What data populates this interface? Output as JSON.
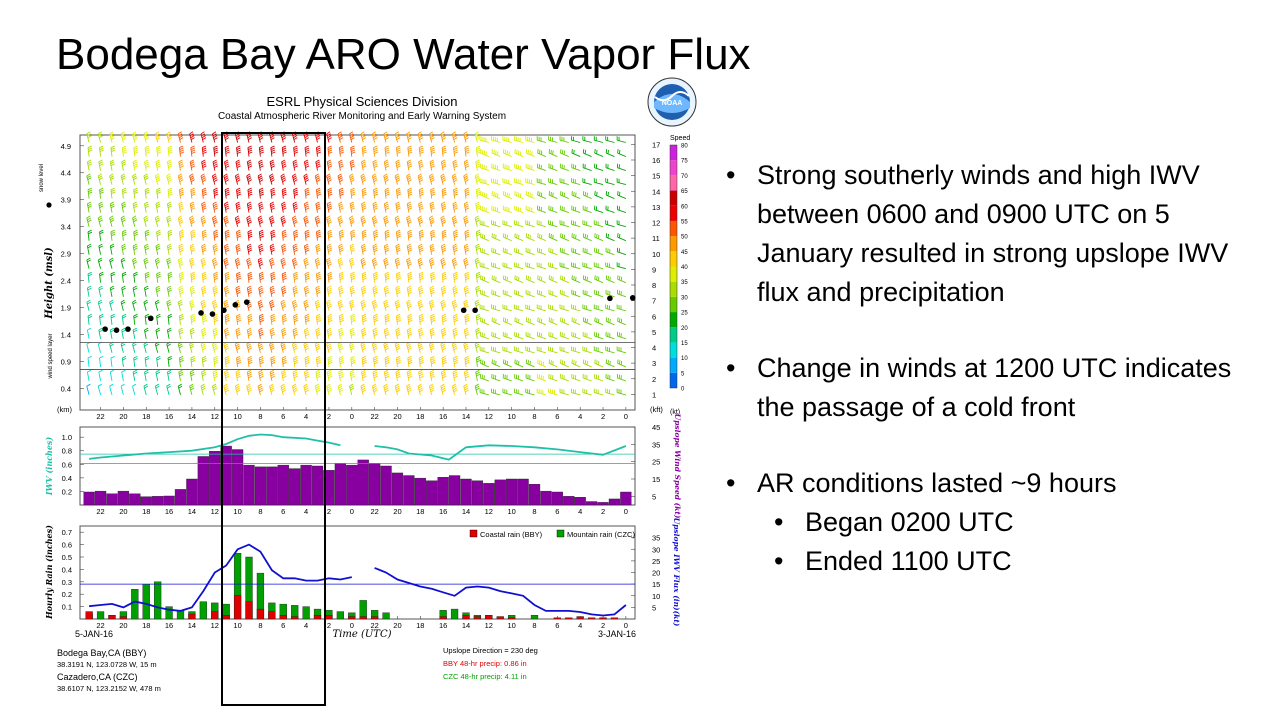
{
  "slide_title": "Bodega Bay ARO Water Vapor Flux",
  "bullets": {
    "b1": "Strong southerly winds and high IWV between 0600 and 0900 UTC on 5 January resulted in strong upslope IWV flux and precipitation",
    "b2": "Change in winds at 1200 UTC indicates the passage of a cold front",
    "b3": "AR conditions lasted ~9 hours",
    "b3a": "Began 0200 UTC",
    "b3b": "Ended 1100 UTC"
  },
  "figure": {
    "header1": "ESRL Physical Sciences Division",
    "header2": "Coastal Atmospheric River Monitoring and Early Warning System",
    "logo_text": "NOAA",
    "date_left": "5-JAN-16",
    "date_right": "3-JAN-16",
    "xlabel": "Time (UTC)",
    "station1_name": "Bodega Bay,CA (BBY)",
    "station1_loc": "38.3191 N, 123.0728 W, 15 m",
    "station2_name": "Cazadero,CA (CZC)",
    "station2_loc": "38.6107 N, 123.2152 W, 478 m",
    "upslope_dir": "Upslope Direction = 230 deg",
    "bby_precip": "BBY 48-hr precip:  0.86 in",
    "czc_precip": "CZC 48-hr precip:  4.11 in",
    "colors": {
      "bby": "#e00000",
      "czc": "#00a000",
      "iwv": "#20c0a8",
      "wind": "#8800a0",
      "flux": "#1010d0"
    }
  },
  "chart_data": [
    {
      "type": "wind_profile",
      "title": "ESRL Physical Sciences Division",
      "ylabel": "Height (msl)",
      "ylim": [
        0,
        5.1
      ],
      "yticks": [
        0.4,
        0.9,
        1.4,
        1.9,
        2.4,
        2.9,
        3.4,
        3.9,
        4.4,
        4.9
      ],
      "ylabel_right": "(kft)",
      "yticks_right": [
        1,
        2,
        3,
        4,
        5,
        6,
        7,
        8,
        9,
        10,
        11,
        12,
        13,
        14,
        15,
        16,
        17
      ],
      "y_unit_left": "(km)",
      "x_tick_labels": [
        "22",
        "20",
        "18",
        "16",
        "14",
        "12",
        "10",
        "8",
        "6",
        "4",
        "2",
        "0",
        "22",
        "20",
        "18",
        "16",
        "14",
        "12",
        "10",
        "8",
        "6",
        "4",
        "2",
        "0"
      ],
      "xlim_hours_ago": [
        47.8,
        -0.8
      ],
      "annotation_snow_level": "snow level",
      "annotation_wind_layer": "wind speed layer",
      "layer_lines_km": [
        0.75,
        1.25
      ],
      "snow_level_points": [
        {
          "x": 45.6,
          "y": 1.5
        },
        {
          "x": 44.6,
          "y": 1.48
        },
        {
          "x": 43.6,
          "y": 1.5
        },
        {
          "x": 41.6,
          "y": 1.7
        },
        {
          "x": 37.2,
          "y": 1.8
        },
        {
          "x": 36.2,
          "y": 1.78
        },
        {
          "x": 35.2,
          "y": 1.85
        },
        {
          "x": 34.2,
          "y": 1.95
        },
        {
          "x": 33.2,
          "y": 2.0
        },
        {
          "x": 14.2,
          "y": 1.85
        },
        {
          "x": 13.2,
          "y": 1.85
        },
        {
          "x": 1.4,
          "y": 2.07
        },
        {
          "x": -0.6,
          "y": 2.08
        }
      ],
      "speed_colorbar": {
        "label": "Speed",
        "unit": "(kt)",
        "ticks": [
          0,
          5,
          10,
          15,
          20,
          25,
          30,
          35,
          40,
          45,
          50,
          55,
          60,
          65,
          70,
          75,
          80
        ],
        "colors": [
          "#0066ee",
          "#00aaff",
          "#00dddd",
          "#00cc88",
          "#00aa00",
          "#66cc00",
          "#aadd00",
          "#ddee00",
          "#ffcc00",
          "#ff9900",
          "#ff5500",
          "#ee0000",
          "#cc0000",
          "#ff66aa",
          "#ee44cc",
          "#cc22dd"
        ]
      }
    },
    {
      "type": "bar_line",
      "ylabel": "IWV (inches)",
      "ylabel_right": "Upslope Wind Speed (kt)",
      "ylim": [
        0,
        1.15
      ],
      "yticks": [
        0.2,
        0.4,
        0.6,
        0.8,
        1.0
      ],
      "ylim_right": [
        0,
        45
      ],
      "yticks_right": [
        5,
        15,
        25,
        35,
        45
      ],
      "x_tick_labels": [
        "22",
        "20",
        "18",
        "16",
        "14",
        "12",
        "10",
        "8",
        "6",
        "4",
        "2",
        "0",
        "22",
        "20",
        "18",
        "16",
        "14",
        "12",
        "10",
        "8",
        "6",
        "4",
        "2",
        "0"
      ],
      "threshold_iwv": 0.75,
      "threshold_wind": 24,
      "wind_bars_x": [
        47,
        46,
        45,
        44,
        43,
        42,
        41,
        40,
        39,
        38,
        37,
        36,
        35,
        34,
        33,
        32,
        31,
        30,
        29,
        28,
        27,
        26,
        25,
        24,
        23,
        22,
        21,
        20,
        19,
        18,
        17,
        16,
        15,
        14,
        13,
        12,
        11,
        10,
        9,
        8,
        7,
        6,
        5,
        4,
        3,
        2,
        1,
        0
      ],
      "wind_bars_kt": [
        7.5,
        8,
        6.5,
        8,
        6.5,
        4.8,
        5,
        5.2,
        9,
        15,
        28,
        31,
        34,
        32,
        23,
        22,
        22,
        23,
        21,
        23,
        22.5,
        20,
        24,
        23,
        26,
        24,
        22.5,
        18.5,
        17,
        15.5,
        14,
        16,
        17,
        15,
        14,
        12.5,
        14.5,
        15,
        15,
        12,
        8,
        7.5,
        5,
        4.5,
        2,
        1.5,
        3.5,
        7.5
      ],
      "iwv_x": [
        47,
        46,
        44,
        42,
        40,
        38,
        36,
        35,
        34,
        33,
        32,
        31,
        30,
        28,
        27,
        26,
        25,
        23.5,
        22,
        21,
        20,
        19,
        17,
        15.5,
        14,
        12,
        10,
        8,
        6,
        4,
        2,
        0
      ],
      "iwv_in": [
        0.68,
        0.7,
        0.73,
        0.76,
        0.78,
        0.8,
        0.85,
        0.9,
        0.97,
        1.02,
        1.04,
        1.03,
        1.0,
        0.98,
        0.95,
        0.92,
        0.88,
        null,
        0.87,
        0.85,
        0.82,
        0.76,
        0.73,
        0.67,
        0.85,
        0.88,
        0.87,
        0.85,
        0.82,
        0.78,
        0.74,
        0.87
      ]
    },
    {
      "type": "bar_line",
      "ylabel": "Hourly Rain (inches)",
      "ylabel_right": "Upslope IWV Flux (in)(kt)",
      "ylim": [
        0,
        0.75
      ],
      "yticks": [
        0.1,
        0.2,
        0.3,
        0.4,
        0.5,
        0.6,
        0.7
      ],
      "ylim_right": [
        0,
        40
      ],
      "yticks_right": [
        5,
        10,
        15,
        20,
        25,
        30,
        35
      ],
      "x_tick_labels": [
        "22",
        "20",
        "18",
        "16",
        "14",
        "12",
        "10",
        "8",
        "6",
        "4",
        "2",
        "0",
        "22",
        "20",
        "18",
        "16",
        "14",
        "12",
        "10",
        "8",
        "6",
        "4",
        "2",
        "0"
      ],
      "threshold_flux": 15,
      "legend": [
        "Coastal rain (BBY)",
        "Mountain rain (CZC)"
      ],
      "czc_x": [
        47,
        46,
        45,
        44,
        43,
        42,
        41,
        40,
        39,
        38,
        37,
        36,
        35,
        34,
        33,
        32,
        31,
        30,
        29,
        28,
        27,
        26,
        25,
        24,
        23,
        22,
        21,
        20,
        19,
        18,
        17,
        16,
        15,
        14,
        13,
        12,
        11,
        10,
        9,
        8,
        7,
        6,
        5,
        4,
        3,
        2,
        1,
        0
      ],
      "czc_rain": [
        0.04,
        0.06,
        0.03,
        0.06,
        0.24,
        0.28,
        0.3,
        0.1,
        0.07,
        0.06,
        0.14,
        0.13,
        0.12,
        0.53,
        0.5,
        0.37,
        0.13,
        0.12,
        0.11,
        0.1,
        0.08,
        0.07,
        0.06,
        0.05,
        0.15,
        0.07,
        0.05,
        0.0,
        0.0,
        0.0,
        0.0,
        0.07,
        0.08,
        0.05,
        0.03,
        0.03,
        0.0,
        0.03,
        0.0,
        0.03,
        0.0,
        0.0,
        0.0,
        0.0,
        0.0,
        0.01,
        0.0,
        0.0
      ],
      "bby_x": [
        47,
        45,
        44,
        38,
        36,
        35,
        34,
        33,
        32,
        31,
        30,
        29,
        27,
        26,
        24,
        23,
        22,
        16,
        14,
        13,
        12,
        11,
        10,
        6,
        5,
        4,
        3,
        2,
        1
      ],
      "bby_rain": [
        0.06,
        0.03,
        0.02,
        0.04,
        0.06,
        0.03,
        0.19,
        0.14,
        0.08,
        0.06,
        0.03,
        0.02,
        0.03,
        0.03,
        0.02,
        0.02,
        0.02,
        0.02,
        0.03,
        0.02,
        0.03,
        0.02,
        0.01,
        0.01,
        0.01,
        0.02,
        0.01,
        0.01,
        0.01
      ],
      "flux_x": [
        47,
        46,
        45,
        44,
        43,
        42,
        41,
        40,
        39,
        38,
        37,
        36,
        35,
        34,
        33,
        32,
        31,
        30,
        29,
        28,
        27,
        26,
        25,
        24,
        23,
        22,
        21,
        20,
        19,
        18,
        17,
        16,
        15,
        14,
        13,
        12,
        11,
        10,
        9,
        8,
        7,
        6,
        5,
        4,
        3,
        2,
        1,
        0
      ],
      "flux_kt": [
        5.5,
        6,
        6.5,
        5,
        7.5,
        6.5,
        5,
        4,
        3.5,
        5,
        12,
        20,
        23,
        30,
        32,
        29,
        21,
        17.5,
        17.5,
        16.5,
        16.5,
        17.5,
        17,
        18,
        null,
        22,
        20,
        17,
        15.5,
        14,
        13,
        11.5,
        10,
        13.5,
        14,
        13.5,
        12,
        11,
        10,
        6,
        3.5,
        3.5,
        3.5,
        3,
        2,
        1.5,
        2,
        6
      ]
    }
  ]
}
